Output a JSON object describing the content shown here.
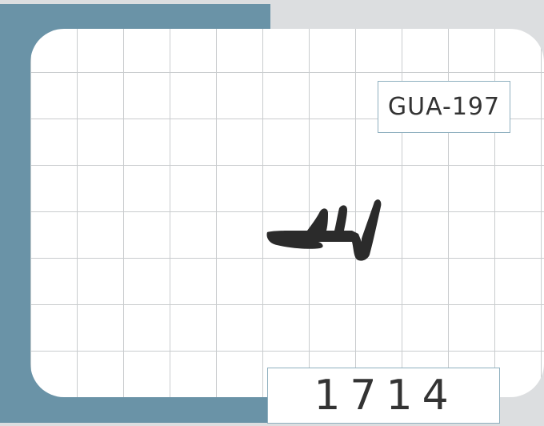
{
  "product": {
    "code": "GUA-197",
    "number": "1714"
  },
  "colors": {
    "band": "#6a93a7",
    "grid_line": "#c9ccce",
    "box_border": "#8fb0bf",
    "profile_fill": "#2b2b2b"
  }
}
